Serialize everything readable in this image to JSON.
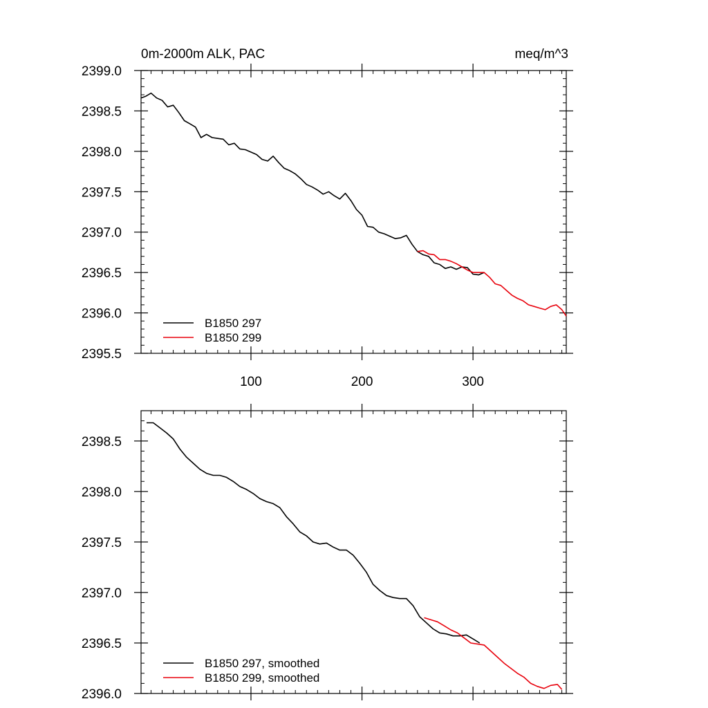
{
  "chart_data": [
    {
      "type": "line",
      "title": "0m-2000m ALK, PAC",
      "title_right": "meq/m^3",
      "xlabel": "",
      "ylabel": "",
      "xlim": [
        1,
        384
      ],
      "ylim": [
        2395.5,
        2399.0
      ],
      "x_ticks": [
        100,
        200,
        300
      ],
      "x_tick_labels": [
        "100",
        "200",
        "300"
      ],
      "y_ticks": [
        2395.5,
        2396.0,
        2396.5,
        2397.0,
        2397.5,
        2398.0,
        2398.5,
        2399.0
      ],
      "y_tick_labels": [
        "2395.5",
        "2396.0",
        "2396.5",
        "2397.0",
        "2397.5",
        "2398.0",
        "2398.5",
        "2399.0"
      ],
      "legend_position": "bottom-left",
      "series": [
        {
          "name": "B1850 297",
          "color": "#000000",
          "x": [
            1,
            5,
            10,
            15,
            20,
            25,
            30,
            35,
            40,
            45,
            50,
            55,
            60,
            65,
            70,
            75,
            80,
            85,
            90,
            95,
            100,
            105,
            110,
            115,
            120,
            125,
            130,
            135,
            140,
            145,
            150,
            155,
            160,
            165,
            170,
            175,
            180,
            185,
            190,
            195,
            200,
            205,
            210,
            215,
            220,
            225,
            230,
            235,
            240,
            245,
            250,
            255,
            260,
            265,
            270,
            275,
            280,
            285,
            290,
            295,
            300,
            305,
            310
          ],
          "y": [
            2398.66,
            2398.68,
            2398.72,
            2398.66,
            2398.63,
            2398.55,
            2398.57,
            2398.48,
            2398.38,
            2398.34,
            2398.3,
            2398.17,
            2398.21,
            2398.17,
            2398.16,
            2398.15,
            2398.08,
            2398.1,
            2398.03,
            2398.02,
            2397.99,
            2397.96,
            2397.9,
            2397.88,
            2397.94,
            2397.86,
            2397.79,
            2397.76,
            2397.72,
            2397.66,
            2397.59,
            2397.56,
            2397.52,
            2397.47,
            2397.5,
            2397.45,
            2397.41,
            2397.48,
            2397.39,
            2397.28,
            2397.21,
            2397.07,
            2397.06,
            2397.0,
            2396.98,
            2396.95,
            2396.92,
            2396.93,
            2396.96,
            2396.85,
            2396.76,
            2396.72,
            2396.7,
            2396.62,
            2396.6,
            2396.55,
            2396.57,
            2396.54,
            2396.57,
            2396.56,
            2396.48,
            2396.47,
            2396.5
          ]
        },
        {
          "name": "B1850 299",
          "color": "#e8000b",
          "x": [
            250,
            255,
            260,
            265,
            270,
            275,
            280,
            285,
            290,
            295,
            300,
            305,
            310,
            315,
            320,
            325,
            330,
            335,
            340,
            345,
            350,
            355,
            360,
            365,
            370,
            375,
            380,
            384
          ],
          "y": [
            2396.76,
            2396.77,
            2396.73,
            2396.72,
            2396.66,
            2396.66,
            2396.64,
            2396.61,
            2396.57,
            2396.53,
            2396.5,
            2396.5,
            2396.5,
            2396.44,
            2396.36,
            2396.34,
            2396.28,
            2396.22,
            2396.18,
            2396.15,
            2396.1,
            2396.08,
            2396.06,
            2396.04,
            2396.08,
            2396.1,
            2396.04,
            2395.96
          ]
        }
      ]
    },
    {
      "type": "line",
      "title": "",
      "xlabel": "",
      "ylabel": "",
      "xlim": [
        1,
        384
      ],
      "ylim": [
        2396.0,
        2398.8
      ],
      "x_ticks": [
        100,
        200,
        300
      ],
      "x_tick_labels": [],
      "y_ticks": [
        2396.0,
        2396.5,
        2397.0,
        2397.5,
        2398.0,
        2398.5
      ],
      "y_tick_labels": [
        "2396.0",
        "2396.5",
        "2397.0",
        "2397.5",
        "2398.0",
        "2398.5"
      ],
      "legend_position": "bottom-left",
      "series": [
        {
          "name": "B1850 297, smoothed",
          "color": "#000000",
          "x": [
            6,
            12,
            18,
            24,
            30,
            36,
            42,
            48,
            54,
            60,
            66,
            72,
            78,
            84,
            90,
            96,
            102,
            108,
            114,
            120,
            126,
            132,
            138,
            144,
            150,
            156,
            162,
            168,
            174,
            180,
            186,
            192,
            198,
            204,
            210,
            216,
            222,
            228,
            234,
            240,
            246,
            252,
            258,
            264,
            270,
            276,
            282,
            288,
            294,
            300,
            306
          ],
          "y": [
            2398.68,
            2398.68,
            2398.63,
            2398.58,
            2398.52,
            2398.42,
            2398.34,
            2398.28,
            2398.22,
            2398.18,
            2398.16,
            2398.16,
            2398.14,
            2398.1,
            2398.05,
            2398.02,
            2397.98,
            2397.93,
            2397.9,
            2397.88,
            2397.84,
            2397.75,
            2397.68,
            2397.6,
            2397.56,
            2397.5,
            2397.48,
            2397.49,
            2397.45,
            2397.42,
            2397.42,
            2397.37,
            2397.29,
            2397.2,
            2397.08,
            2397.02,
            2396.97,
            2396.95,
            2396.94,
            2396.94,
            2396.87,
            2396.76,
            2396.7,
            2396.64,
            2396.6,
            2396.59,
            2396.57,
            2396.57,
            2396.58,
            2396.54,
            2396.5
          ]
        },
        {
          "name": "B1850 299, smoothed",
          "color": "#e8000b",
          "x": [
            256,
            262,
            268,
            274,
            280,
            286,
            292,
            298,
            304,
            310,
            316,
            322,
            328,
            334,
            340,
            346,
            352,
            358,
            364,
            370,
            376,
            380
          ],
          "y": [
            2396.75,
            2396.73,
            2396.71,
            2396.67,
            2396.63,
            2396.6,
            2396.55,
            2396.5,
            2396.49,
            2396.48,
            2396.42,
            2396.36,
            2396.3,
            2396.25,
            2396.2,
            2396.16,
            2396.1,
            2396.07,
            2396.05,
            2396.08,
            2396.09,
            2396.04
          ]
        }
      ]
    }
  ]
}
